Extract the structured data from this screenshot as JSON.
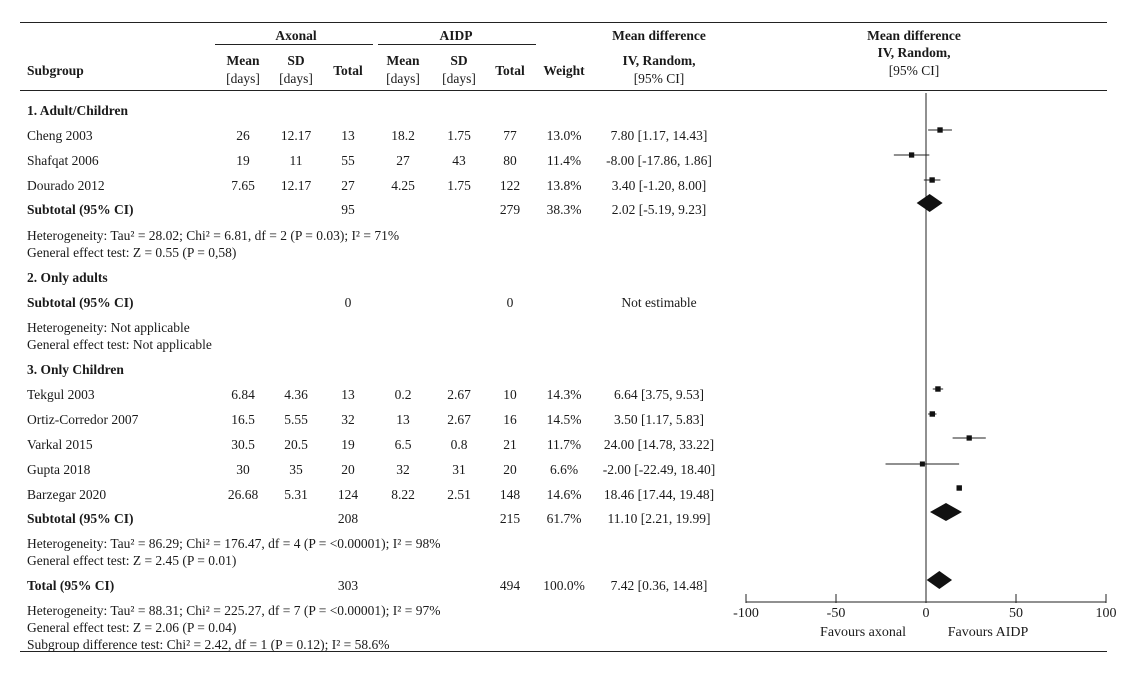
{
  "headers": {
    "group1": "Axonal",
    "group2": "AIDP",
    "subgroup": "Subgroup",
    "mean_l1": "Mean",
    "mean_l2": "[days]",
    "sd_l1": "SD",
    "sd_l2": "[days]",
    "total": "Total",
    "weight": "Weight",
    "md_l1": "Mean difference",
    "md_l2": "IV, Random,",
    "md_l3": "[95% CI]",
    "plot_l1": "Mean difference",
    "plot_l2": "IV, Random,",
    "plot_l3": "[95% CI]"
  },
  "rows": [
    {
      "kind": "group",
      "label": "1. Adult/Children"
    },
    {
      "kind": "study",
      "label": "Cheng 2003",
      "m1": "26",
      "sd1": "12.17",
      "n1": "13",
      "m2": "18.2",
      "sd2": "1.75",
      "n2": "77",
      "w": "13.0%",
      "ci": "7.80 [1.17, 14.43]"
    },
    {
      "kind": "study",
      "label": "Shafqat 2006",
      "m1": "19",
      "sd1": "11",
      "n1": "55",
      "m2": "27",
      "sd2": "43",
      "n2": "80",
      "w": "11.4%",
      "ci": "-8.00 [-17.86, 1.86]"
    },
    {
      "kind": "study",
      "label": "Dourado 2012",
      "m1": "7.65",
      "sd1": "12.17",
      "n1": "27",
      "m2": "4.25",
      "sd2": "1.75",
      "n2": "122",
      "w": "13.8%",
      "ci": "3.40 [-1.20, 8.00]"
    },
    {
      "kind": "subtotal",
      "label": "Subtotal (95% CI)",
      "n1": "95",
      "n2": "279",
      "w": "38.3%",
      "ci": "2.02 [-5.19, 9.23]"
    },
    {
      "kind": "note",
      "label": "Heterogeneity: Tau² = 28.02; Chi² = 6.81, df = 2 (P = 0.03); I² = 71%"
    },
    {
      "kind": "note",
      "label": "General effect test:  Z = 0.55 (P = 0,58)"
    },
    {
      "kind": "group",
      "label": "2. Only adults"
    },
    {
      "kind": "subtotal",
      "label": "Subtotal (95% CI)",
      "n1": "0",
      "n2": "0",
      "w": "",
      "ci": "Not estimable"
    },
    {
      "kind": "note",
      "label": "Heterogeneity: Not applicable"
    },
    {
      "kind": "note",
      "label": "General effect test: Not applicable"
    },
    {
      "kind": "group",
      "label": "3. Only Children"
    },
    {
      "kind": "study",
      "label": "Tekgul 2003",
      "m1": "6.84",
      "sd1": "4.36",
      "n1": "13",
      "m2": "0.2",
      "sd2": "2.67",
      "n2": "10",
      "w": "14.3%",
      "ci": "6.64 [3.75, 9.53]"
    },
    {
      "kind": "study",
      "label": "Ortiz-Corredor 2007",
      "m1": "16.5",
      "sd1": "5.55",
      "n1": "32",
      "m2": "13",
      "sd2": "2.67",
      "n2": "16",
      "w": "14.5%",
      "ci": "3.50 [1.17, 5.83]"
    },
    {
      "kind": "study",
      "label": "Varkal 2015",
      "m1": "30.5",
      "sd1": "20.5",
      "n1": "19",
      "m2": "6.5",
      "sd2": "0.8",
      "n2": "21",
      "w": "11.7%",
      "ci": "24.00 [14.78, 33.22]"
    },
    {
      "kind": "study",
      "label": "Gupta 2018",
      "m1": "30",
      "sd1": "35",
      "n1": "20",
      "m2": "32",
      "sd2": "31",
      "n2": "20",
      "w": "6.6%",
      "ci": "-2.00 [-22.49, 18.40]"
    },
    {
      "kind": "study",
      "label": "Barzegar 2020",
      "m1": "26.68",
      "sd1": "5.31",
      "n1": "124",
      "m2": "8.22",
      "sd2": "2.51",
      "n2": "148",
      "w": "14.6%",
      "ci": "18.46 [17.44, 19.48]"
    },
    {
      "kind": "subtotal",
      "label": "Subtotal (95% CI)",
      "n1": "208",
      "n2": "215",
      "w": "61.7%",
      "ci": "11.10 [2.21, 19.99]"
    },
    {
      "kind": "note",
      "label": "Heterogeneity: Tau² = 86.29; Chi² = 176.47, df = 4 (P = <0.00001); I² = 98%"
    },
    {
      "kind": "note",
      "label": "General effect test: Z = 2.45 (P = 0.01)"
    },
    {
      "kind": "total",
      "label": "Total (95% CI)",
      "n1": "303",
      "n2": "494",
      "w": "100.0%",
      "ci": "7.42 [0.36, 14.48]"
    },
    {
      "kind": "note",
      "label": "Heterogeneity: Tau² = 88.31; Chi² = 225.27, df = 7 (P = <0.00001); I² = 97%"
    },
    {
      "kind": "note",
      "label": "General effect test: Z = 2.06 (P = 0.04)"
    },
    {
      "kind": "note",
      "label": "Subgroup difference test: Chi² = 2.42, df = 1 (P = 0.12); I² = 58.6%"
    }
  ],
  "chart_data": {
    "type": "forest",
    "xlim": [
      -100,
      100
    ],
    "xticks": [
      -100,
      -50,
      0,
      50,
      100
    ],
    "xtick_labels": [
      "-100",
      "-50",
      "0",
      "50",
      "100"
    ],
    "favours_left": "Favours axonal",
    "favours_right": "Favours AIDP",
    "studies": [
      {
        "name": "Cheng 2003",
        "est": 7.8,
        "lo": 1.17,
        "hi": 14.43,
        "weight": 13.0
      },
      {
        "name": "Shafqat 2006",
        "est": -8.0,
        "lo": -17.86,
        "hi": 1.86,
        "weight": 11.4
      },
      {
        "name": "Dourado 2012",
        "est": 3.4,
        "lo": -1.2,
        "hi": 8.0,
        "weight": 13.8
      },
      {
        "name": "Tekgul 2003",
        "est": 6.64,
        "lo": 3.75,
        "hi": 9.53,
        "weight": 14.3
      },
      {
        "name": "Ortiz-Corredor 2007",
        "est": 3.5,
        "lo": 1.17,
        "hi": 5.83,
        "weight": 14.5
      },
      {
        "name": "Varkal 2015",
        "est": 24.0,
        "lo": 14.78,
        "hi": 33.22,
        "weight": 11.7
      },
      {
        "name": "Gupta 2018",
        "est": -2.0,
        "lo": -22.49,
        "hi": 18.4,
        "weight": 6.6
      },
      {
        "name": "Barzegar 2020",
        "est": 18.46,
        "lo": 17.44,
        "hi": 19.48,
        "weight": 14.6
      }
    ],
    "pooled": [
      {
        "name": "Subtotal 1. Adult/Children",
        "est": 2.02,
        "lo": -5.19,
        "hi": 9.23
      },
      {
        "name": "Subtotal 3. Only Children",
        "est": 11.1,
        "lo": 2.21,
        "hi": 19.99
      },
      {
        "name": "Total",
        "est": 7.42,
        "lo": 0.36,
        "hi": 14.48
      }
    ]
  }
}
